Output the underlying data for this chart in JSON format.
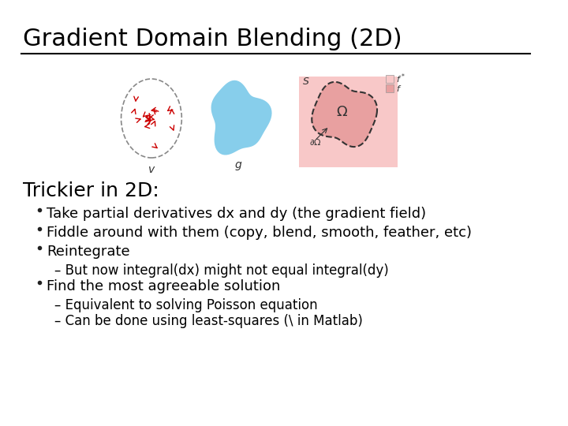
{
  "title": "Gradient Domain Blending (2D)",
  "background_color": "#ffffff",
  "title_fontsize": 22,
  "title_font": "DejaVu Sans",
  "subtitle": "Trickier in 2D:",
  "subtitle_fontsize": 18,
  "bullet_fontsize": 13,
  "sub_bullet_fontsize": 12,
  "bullets": [
    {
      "level": 1,
      "text": "Take partial derivatives dx and dy (the gradient field)"
    },
    {
      "level": 1,
      "text": "Fiddle around with them (copy, blend, smooth, feather, etc)"
    },
    {
      "level": 1,
      "text": "Reintegrate"
    },
    {
      "level": 2,
      "text": "But now integral(dx) might not equal integral(dy)"
    },
    {
      "level": 1,
      "text": "Find the most agreeable solution"
    },
    {
      "level": 2,
      "text": "Equivalent to solving Poisson equation"
    },
    {
      "level": 2,
      "text": "Can be done using least-squares (\\ in Matlab)"
    }
  ]
}
